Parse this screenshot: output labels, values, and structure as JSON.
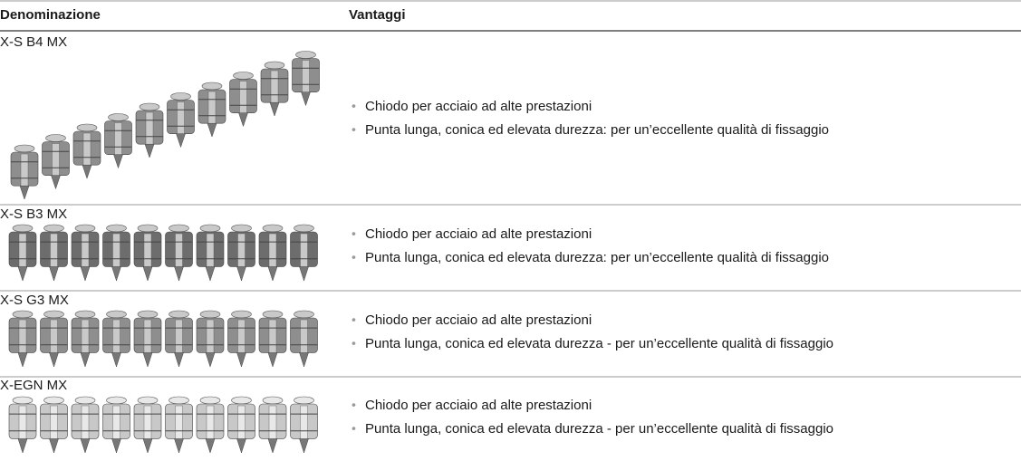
{
  "header": {
    "columns": [
      "Denominazione",
      "Vantaggi"
    ]
  },
  "rows": [
    {
      "name": "X-S B4 MX",
      "bullets": [
        "Chiodo per acciaio ad alte prestazioni",
        "Punta lunga, conica ed elevata durezza: per un’eccellente qualità di fissaggio"
      ]
    },
    {
      "name": "X-S B3 MX",
      "bullets": [
        "Chiodo per acciaio ad alte prestazioni",
        "Punta lunga, conica ed elevata durezza: per un’eccellente qualità di fissaggio"
      ]
    },
    {
      "name": "X-S G3 MX",
      "bullets": [
        "Chiodo per acciaio ad alte prestazioni",
        "Punta lunga, conica ed elevata durezza - per un’eccellente qualità di fissaggio"
      ]
    },
    {
      "name": "X-EGN MX",
      "bullets": [
        "Chiodo per acciaio ad alte prestazioni",
        "Punta lunga, conica ed elevata durezza - per un’eccellente qualità di fissaggio"
      ]
    }
  ]
}
